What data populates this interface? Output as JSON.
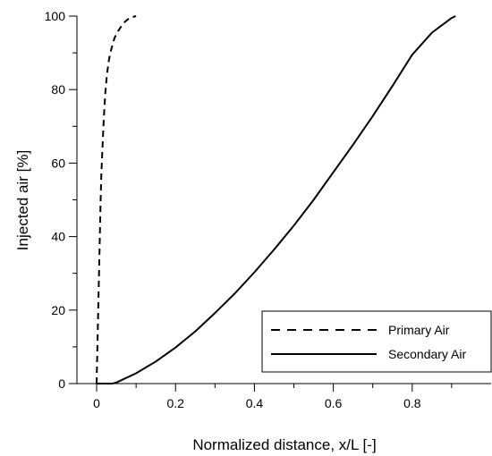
{
  "chart_data": {
    "type": "line",
    "title": "",
    "xlabel": "Normalized distance, x/L [-]",
    "ylabel": "Injected air [%]",
    "xlim": [
      -0.05,
      1.0
    ],
    "ylim": [
      0,
      100
    ],
    "x_ticks": [
      0,
      0.2,
      0.4,
      0.6,
      0.8
    ],
    "x_tick_labels": [
      "0",
      "0.2",
      "0.4",
      "0.6",
      "0.8"
    ],
    "x_minor_ticks": [
      0.1,
      0.3,
      0.5,
      0.7,
      0.9
    ],
    "y_ticks": [
      0,
      20,
      40,
      60,
      80,
      100
    ],
    "y_tick_labels": [
      "0",
      "20",
      "40",
      "60",
      "80",
      "100"
    ],
    "y_minor_ticks": [
      10,
      30,
      50,
      70,
      90
    ],
    "grid": false,
    "legend_position": "bottom-right",
    "series": [
      {
        "name": "Primary Air",
        "style": "dashed",
        "color": "#000000",
        "x": [
          0.0,
          0.002,
          0.004,
          0.006,
          0.008,
          0.01,
          0.012,
          0.015,
          0.018,
          0.022,
          0.026,
          0.031,
          0.037,
          0.045,
          0.055,
          0.067,
          0.083,
          0.1
        ],
        "y": [
          0,
          10,
          20,
          30,
          40,
          50,
          57,
          65,
          72,
          79,
          84,
          88,
          91,
          94,
          96,
          98,
          99.5,
          100
        ]
      },
      {
        "name": "Secondary Air",
        "style": "solid",
        "color": "#000000",
        "x": [
          0.0,
          0.04,
          0.05,
          0.1,
          0.15,
          0.2,
          0.25,
          0.3,
          0.35,
          0.4,
          0.45,
          0.5,
          0.55,
          0.6,
          0.65,
          0.7,
          0.75,
          0.8,
          0.85,
          0.9,
          0.91
        ],
        "y": [
          0,
          0,
          0.3,
          2.8,
          6,
          9.8,
          14.2,
          19.2,
          24.5,
          30.3,
          36.5,
          43,
          50,
          57.5,
          65,
          72.8,
          81,
          89.5,
          95.5,
          99.5,
          100
        ]
      }
    ]
  }
}
